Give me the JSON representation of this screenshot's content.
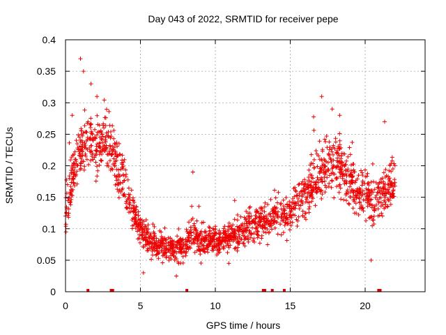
{
  "chart_data": {
    "type": "scatter",
    "title": "Day 043 of 2022, SRMTID for receiver pepe",
    "xlabel": "GPS time / hours",
    "ylabel": "SRMTID / TECUs",
    "xlim": [
      0,
      24
    ],
    "ylim": [
      0,
      0.4
    ],
    "xticks": [
      0,
      5,
      10,
      15,
      20
    ],
    "xtick_labels": [
      "0",
      "5",
      "10",
      "15",
      "20"
    ],
    "yticks": [
      0,
      0.05,
      0.1,
      0.15,
      0.2,
      0.25,
      0.3,
      0.35,
      0.4
    ],
    "ytick_labels": [
      "0",
      "0.05",
      "0.1",
      "0.15",
      "0.2",
      "0.25",
      "0.3",
      "0.35",
      "0.4"
    ],
    "grid": true,
    "marker": "+",
    "color": "#ee0000",
    "series": [
      {
        "name": "SRMTID",
        "trend": [
          [
            0.0,
            0.13
          ],
          [
            0.5,
            0.19
          ],
          [
            1.0,
            0.22
          ],
          [
            1.5,
            0.24
          ],
          [
            2.0,
            0.22
          ],
          [
            2.5,
            0.24
          ],
          [
            3.0,
            0.23
          ],
          [
            3.5,
            0.2
          ],
          [
            4.0,
            0.17
          ],
          [
            4.5,
            0.13
          ],
          [
            5.0,
            0.1
          ],
          [
            5.5,
            0.08
          ],
          [
            6.0,
            0.075
          ],
          [
            6.5,
            0.072
          ],
          [
            7.0,
            0.068
          ],
          [
            7.5,
            0.068
          ],
          [
            8.0,
            0.075
          ],
          [
            8.5,
            0.1
          ],
          [
            9.0,
            0.075
          ],
          [
            9.5,
            0.08
          ],
          [
            10.0,
            0.08
          ],
          [
            10.5,
            0.085
          ],
          [
            11.0,
            0.085
          ],
          [
            11.5,
            0.09
          ],
          [
            12.0,
            0.1
          ],
          [
            12.5,
            0.105
          ],
          [
            13.0,
            0.11
          ],
          [
            13.5,
            0.115
          ],
          [
            14.0,
            0.12
          ],
          [
            14.5,
            0.12
          ],
          [
            15.0,
            0.125
          ],
          [
            15.5,
            0.14
          ],
          [
            16.0,
            0.15
          ],
          [
            16.5,
            0.17
          ],
          [
            17.0,
            0.19
          ],
          [
            17.5,
            0.2
          ],
          [
            18.0,
            0.2
          ],
          [
            18.5,
            0.19
          ],
          [
            19.0,
            0.17
          ],
          [
            19.5,
            0.16
          ],
          [
            20.0,
            0.16
          ],
          [
            20.5,
            0.14
          ],
          [
            21.0,
            0.15
          ],
          [
            21.5,
            0.17
          ],
          [
            22.0,
            0.17
          ]
        ],
        "spread": [
          [
            0.0,
            0.05
          ],
          [
            3.5,
            0.055
          ],
          [
            4.5,
            0.04
          ],
          [
            5.0,
            0.03
          ],
          [
            8.0,
            0.025
          ],
          [
            8.5,
            0.04
          ],
          [
            9.0,
            0.025
          ],
          [
            12.0,
            0.03
          ],
          [
            15.0,
            0.04
          ],
          [
            17.0,
            0.06
          ],
          [
            19.0,
            0.055
          ],
          [
            22.0,
            0.05
          ]
        ],
        "peaks": [
          {
            "x": 0.45,
            "y": 0.28
          },
          {
            "x": 1.0,
            "y": 0.37
          },
          {
            "x": 1.2,
            "y": 0.35
          },
          {
            "x": 1.7,
            "y": 0.33
          },
          {
            "x": 2.1,
            "y": 0.31
          },
          {
            "x": 8.5,
            "y": 0.19
          },
          {
            "x": 17.1,
            "y": 0.31
          },
          {
            "x": 17.8,
            "y": 0.29
          },
          {
            "x": 18.3,
            "y": 0.28
          },
          {
            "x": 21.3,
            "y": 0.27
          }
        ],
        "troughs": [
          {
            "x": 5.2,
            "y": 0.03
          },
          {
            "x": 7.4,
            "y": 0.025
          },
          {
            "x": 10.9,
            "y": 0.045
          },
          {
            "x": 20.4,
            "y": 0.05
          }
        ]
      }
    ],
    "gap_markers": [
      1.5,
      3.05,
      3.15,
      8.1,
      13.2,
      13.3,
      13.8,
      14.6,
      20.9,
      21.0
    ],
    "data_range": [
      0.0,
      22.0
    ]
  }
}
